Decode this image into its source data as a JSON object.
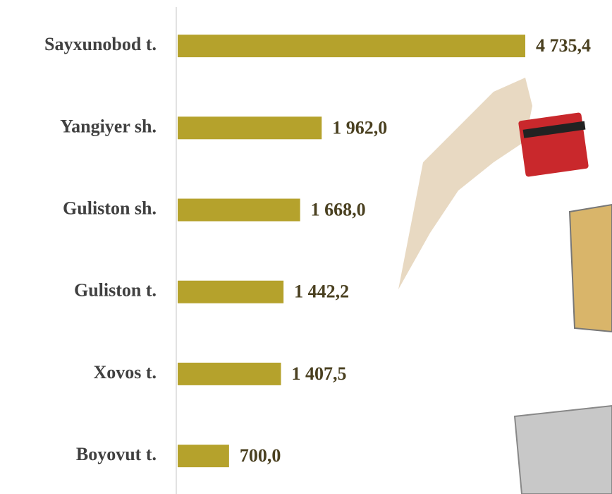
{
  "chart_data": {
    "type": "bar",
    "orientation": "horizontal",
    "categories": [
      "Sayxunobod t.",
      "Yangiyer sh.",
      "Guliston sh.",
      "Guliston t.",
      "Xovos t.",
      "Boyovut t."
    ],
    "values": [
      4735.4,
      1962.0,
      1668.0,
      1442.2,
      1407.5,
      700.0
    ],
    "value_labels": [
      "4 735,4",
      "1 962,0",
      "1 668,0",
      "1 442,2",
      "1 407,5",
      "700,0"
    ],
    "color": "#b5a22c"
  }
}
